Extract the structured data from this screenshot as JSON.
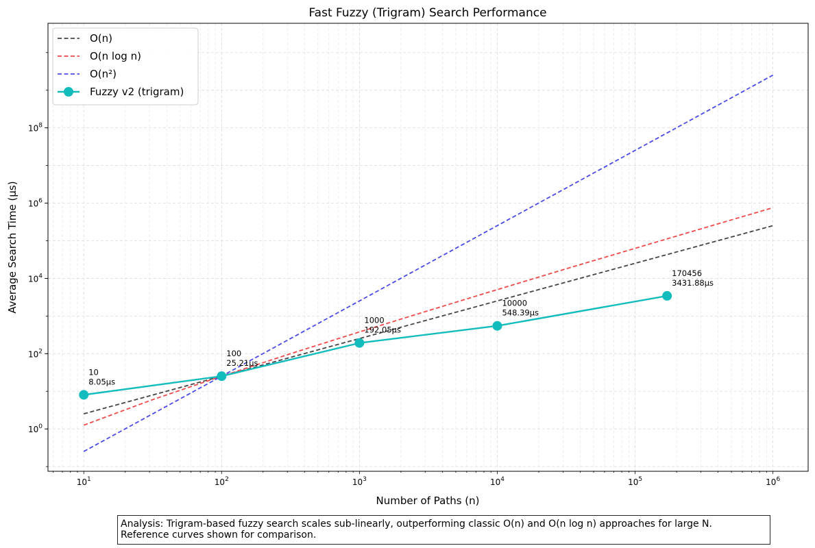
{
  "chart_data": {
    "type": "line",
    "title": "Fast Fuzzy (Trigram) Search Performance",
    "xlabel": "Number of Paths (n)",
    "ylabel": "Average Search Time (µs)",
    "xscale": "log",
    "yscale": "log",
    "xlim": [
      5.5,
      1800000
    ],
    "ylim": [
      0.075,
      60000000000
    ],
    "grid": true,
    "legend_position": "top-left",
    "x_ticks": [
      {
        "value": 10,
        "mantissa": "10",
        "exp": "1"
      },
      {
        "value": 100,
        "mantissa": "10",
        "exp": "2"
      },
      {
        "value": 1000,
        "mantissa": "10",
        "exp": "3"
      },
      {
        "value": 10000,
        "mantissa": "10",
        "exp": "4"
      },
      {
        "value": 100000,
        "mantissa": "10",
        "exp": "5"
      },
      {
        "value": 1000000,
        "mantissa": "10",
        "exp": "6"
      }
    ],
    "y_ticks": [
      {
        "value": 1,
        "mantissa": "10",
        "exp": "0"
      },
      {
        "value": 100,
        "mantissa": "10",
        "exp": "2"
      },
      {
        "value": 10000,
        "mantissa": "10",
        "exp": "4"
      },
      {
        "value": 1000000,
        "mantissa": "10",
        "exp": "6"
      },
      {
        "value": 100000000,
        "mantissa": "10",
        "exp": "8"
      }
    ],
    "series": [
      {
        "name": "O(n)",
        "style": "dashed",
        "color": "#444444",
        "x": [
          10,
          100,
          1000,
          10000,
          100000,
          1000000
        ],
        "y": [
          2.52,
          25.2,
          252,
          2520,
          25200,
          252000
        ]
      },
      {
        "name": "O(n log n)",
        "style": "dashed",
        "color": "#f04848",
        "x": [
          10,
          31.6,
          100,
          316,
          1000,
          3162,
          10000,
          31623,
          100000,
          316228,
          1000000
        ],
        "y": [
          1.26,
          6.0,
          25.2,
          99.7,
          378,
          1390,
          5040,
          18000,
          63000,
          219000,
          756000
        ]
      },
      {
        "name": "O(n²)",
        "style": "dashed",
        "color": "#4a4ae8",
        "x": [
          10,
          100,
          1000,
          10000,
          100000,
          1000000
        ],
        "y": [
          0.252,
          25.2,
          2520,
          252000,
          25200000,
          2520000000
        ]
      },
      {
        "name": "Fuzzy v2 (trigram)",
        "style": "solid-markers",
        "color": "#12bcbc",
        "x": [
          10,
          100,
          1000,
          10000,
          170456
        ],
        "y": [
          8.05,
          25.21,
          192.05,
          548.39,
          3431.88
        ]
      }
    ],
    "annotations": [
      {
        "x": 10,
        "y": 8.05,
        "line1": "10",
        "line2": "8.05µs"
      },
      {
        "x": 100,
        "y": 25.21,
        "line1": "100",
        "line2": "25.21µs"
      },
      {
        "x": 1000,
        "y": 192.05,
        "line1": "1000",
        "line2": "192.05µs"
      },
      {
        "x": 10000,
        "y": 548.39,
        "line1": "10000",
        "line2": "548.39µs"
      },
      {
        "x": 170456,
        "y": 3431.88,
        "line1": "170456",
        "line2": "3431.88µs"
      }
    ]
  },
  "analysis": {
    "line1": "Analysis: Trigram-based fuzzy search scales sub-linearly, outperforming classic O(n) and O(n log n) approaches for large N.",
    "line2": "Reference curves shown for comparison."
  }
}
